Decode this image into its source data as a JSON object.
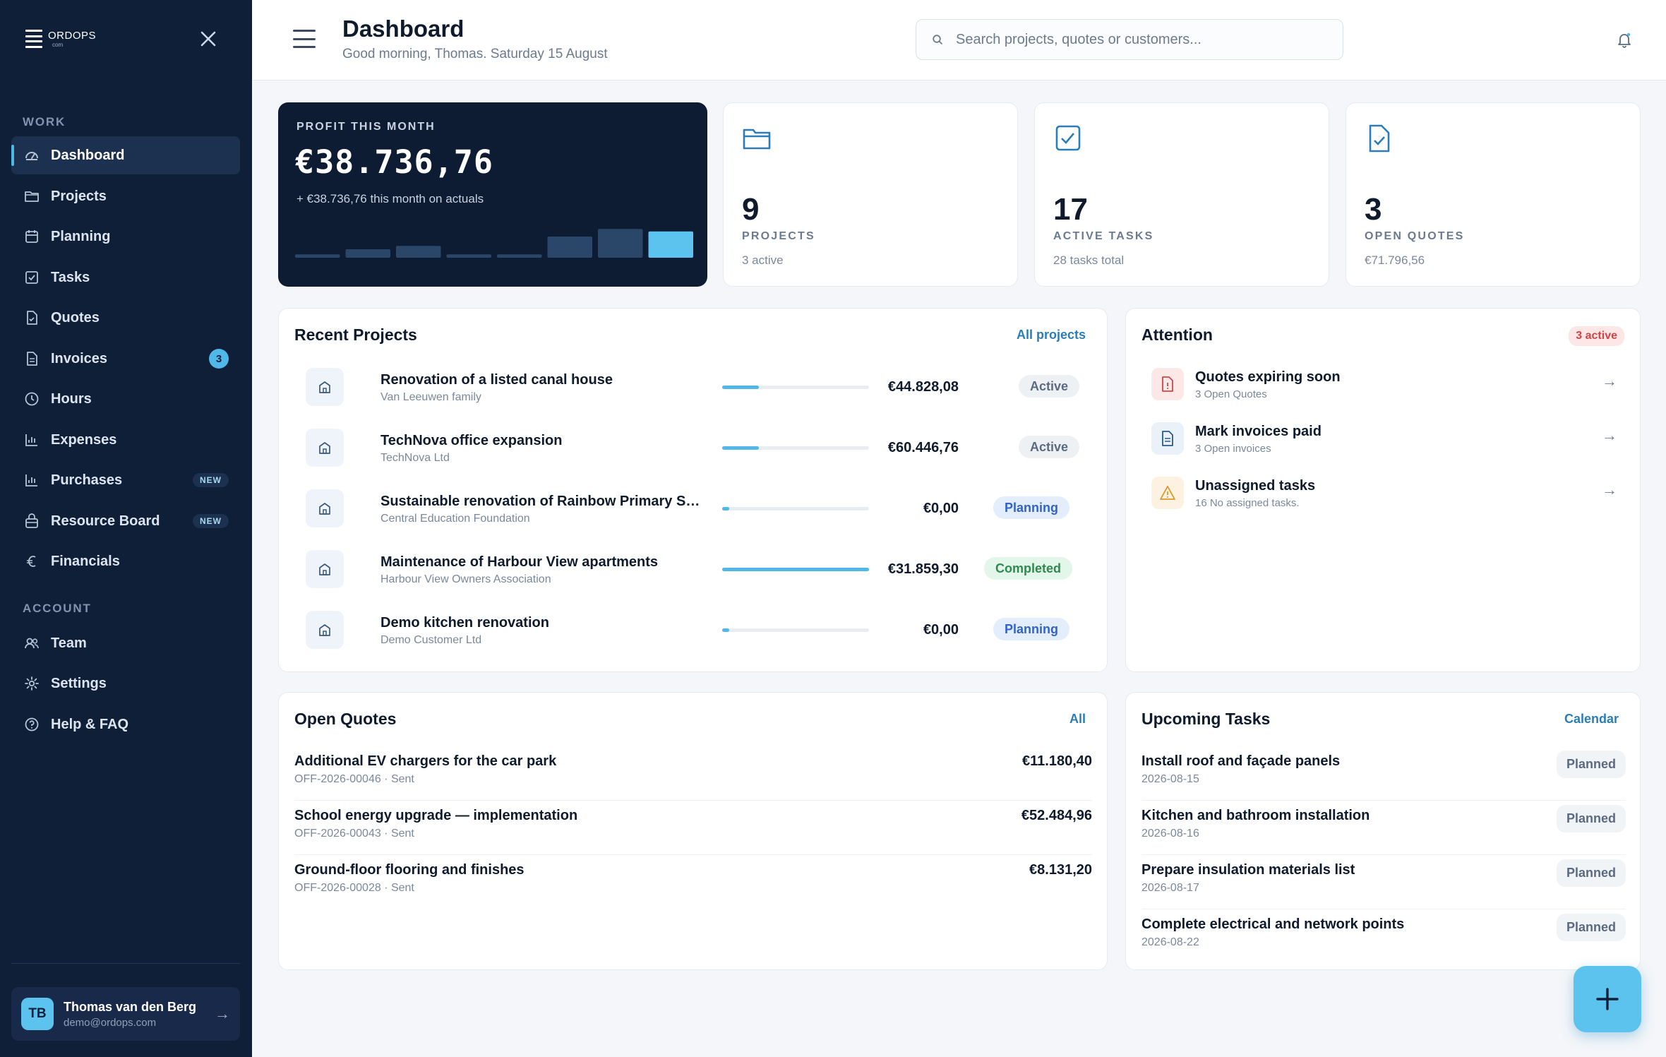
{
  "app": {
    "logo_text": "ORDOPS",
    "logo_sub": "com"
  },
  "sidebar": {
    "work_label": "WORK",
    "account_label": "ACCOUNT",
    "items": [
      {
        "label": "Dashboard",
        "icon": "dashboard-gauge-icon",
        "active": true
      },
      {
        "label": "Projects",
        "icon": "folder-icon"
      },
      {
        "label": "Planning",
        "icon": "calendar-icon"
      },
      {
        "label": "Tasks",
        "icon": "checkbox-icon"
      },
      {
        "label": "Quotes",
        "icon": "document-check-icon"
      },
      {
        "label": "Invoices",
        "icon": "invoice-icon",
        "badge": "3"
      },
      {
        "label": "Hours",
        "icon": "clock-icon"
      },
      {
        "label": "Expenses",
        "icon": "chart-icon"
      },
      {
        "label": "Purchases",
        "icon": "chart-icon",
        "tag": "NEW"
      },
      {
        "label": "Resource Board",
        "icon": "lock-board-icon",
        "tag": "NEW"
      },
      {
        "label": "Financials",
        "icon": "euro-icon"
      }
    ],
    "account_items": [
      {
        "label": "Team",
        "icon": "users-icon"
      },
      {
        "label": "Settings",
        "icon": "gear-icon"
      },
      {
        "label": "Help & FAQ",
        "icon": "help-circle-icon"
      }
    ],
    "user": {
      "initials": "TB",
      "name": "Thomas van den Berg",
      "email": "demo@ordops.com"
    }
  },
  "header": {
    "title": "Dashboard",
    "subtitle": "Good morning, Thomas. Saturday 15 August",
    "search_placeholder": "Search projects, quotes or customers..."
  },
  "profit": {
    "label": "PROFIT THIS MONTH",
    "value": "€38.736,76",
    "sub": "+ €38.736,76 this month on actuals",
    "bars": [
      0.08,
      0.2,
      0.28,
      0.08,
      0.08,
      0.5,
      0.68,
      0.62
    ],
    "bar_color": "#2a4668",
    "bar_highlight": "#5cc2ee"
  },
  "stats": [
    {
      "num": "9",
      "label": "PROJECTS",
      "sub": "3 active",
      "icon": "folder-icon"
    },
    {
      "num": "17",
      "label": "ACTIVE TASKS",
      "sub": "28 tasks total",
      "icon": "checkbox-icon"
    },
    {
      "num": "3",
      "label": "OPEN QUOTES",
      "sub": "€71.796,56",
      "icon": "document-check-icon"
    }
  ],
  "recent_projects": {
    "title": "Recent Projects",
    "link": "All projects",
    "rows": [
      {
        "name": "Renovation of a listed canal house",
        "client": "Van Leeuwen family",
        "progress": 0.25,
        "amount": "€44.828,08",
        "status": "Active",
        "status_type": "active"
      },
      {
        "name": "TechNova office expansion",
        "client": "TechNova Ltd",
        "progress": 0.25,
        "amount": "€60.446,76",
        "status": "Active",
        "status_type": "active"
      },
      {
        "name": "Sustainable renovation of Rainbow Primary Sc...",
        "client": "Central Education Foundation",
        "progress": 0.05,
        "amount": "€0,00",
        "status": "Planning",
        "status_type": "planning"
      },
      {
        "name": "Maintenance of Harbour View apartments",
        "client": "Harbour View Owners Association",
        "progress": 1.0,
        "amount": "€31.859,30",
        "status": "Completed",
        "status_type": "completed"
      },
      {
        "name": "Demo kitchen renovation",
        "client": "Demo Customer Ltd",
        "progress": 0.05,
        "amount": "€0,00",
        "status": "Planning",
        "status_type": "planning"
      }
    ]
  },
  "attention": {
    "title": "Attention",
    "badge": "3 active",
    "rows": [
      {
        "title": "Quotes expiring soon",
        "sub": "3 Open Quotes",
        "icon": "document-alert-icon",
        "color": "#d04646",
        "bg": "#fde8e8"
      },
      {
        "title": "Mark invoices paid",
        "sub": "3 Open invoices",
        "icon": "invoice-icon",
        "color": "#2a5a8c",
        "bg": "#eaf1f8"
      },
      {
        "title": "Unassigned tasks",
        "sub": "16 No assigned tasks.",
        "icon": "warning-triangle-icon",
        "color": "#d89a2a",
        "bg": "#fdf2e1"
      }
    ]
  },
  "open_quotes": {
    "title": "Open Quotes",
    "link": "All",
    "rows": [
      {
        "title": "Additional EV chargers for the car park",
        "sub": "OFF-2026-00046 · Sent",
        "amount": "€11.180,40"
      },
      {
        "title": "School energy upgrade — implementation",
        "sub": "OFF-2026-00043 · Sent",
        "amount": "€52.484,96"
      },
      {
        "title": "Ground-floor flooring and finishes",
        "sub": "OFF-2026-00028 · Sent",
        "amount": "€8.131,20"
      }
    ]
  },
  "upcoming_tasks": {
    "title": "Upcoming Tasks",
    "link": "Calendar",
    "rows": [
      {
        "title": "Install roof and façade panels",
        "date": "2026-08-15",
        "status": "Planned"
      },
      {
        "title": "Kitchen and bathroom installation",
        "date": "2026-08-16",
        "status": "Planned"
      },
      {
        "title": "Prepare insulation materials list",
        "date": "2026-08-17",
        "status": "Planned"
      },
      {
        "title": "Complete electrical and network points",
        "date": "2026-08-22",
        "status": "Planned"
      }
    ]
  }
}
